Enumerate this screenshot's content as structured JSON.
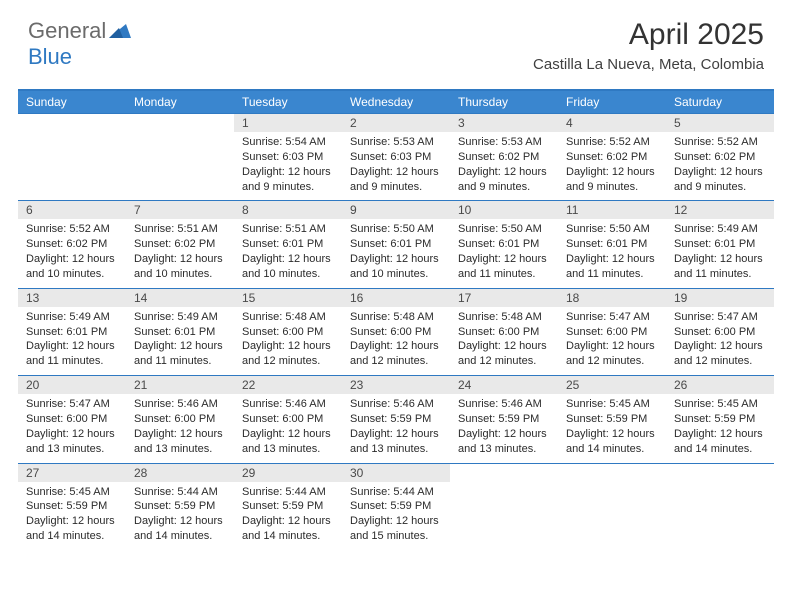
{
  "logo": {
    "general": "General",
    "blue": "Blue"
  },
  "title": "April 2025",
  "location": "Castilla La Nueva, Meta, Colombia",
  "colors": {
    "headerBar": "#3a86cf",
    "topBorder": "#2f79c2",
    "dayNumBg": "#e9e9e9",
    "textDark": "#2b2b2b",
    "logoGray": "#6b6b6b",
    "logoBlue": "#2f79c2"
  },
  "daysOfWeek": [
    "Sunday",
    "Monday",
    "Tuesday",
    "Wednesday",
    "Thursday",
    "Friday",
    "Saturday"
  ],
  "startDayOffset": 2,
  "numDays": 30,
  "days": [
    {
      "n": 1,
      "sr": "5:54 AM",
      "ss": "6:03 PM",
      "dl": "12 hours and 9 minutes."
    },
    {
      "n": 2,
      "sr": "5:53 AM",
      "ss": "6:03 PM",
      "dl": "12 hours and 9 minutes."
    },
    {
      "n": 3,
      "sr": "5:53 AM",
      "ss": "6:02 PM",
      "dl": "12 hours and 9 minutes."
    },
    {
      "n": 4,
      "sr": "5:52 AM",
      "ss": "6:02 PM",
      "dl": "12 hours and 9 minutes."
    },
    {
      "n": 5,
      "sr": "5:52 AM",
      "ss": "6:02 PM",
      "dl": "12 hours and 9 minutes."
    },
    {
      "n": 6,
      "sr": "5:52 AM",
      "ss": "6:02 PM",
      "dl": "12 hours and 10 minutes."
    },
    {
      "n": 7,
      "sr": "5:51 AM",
      "ss": "6:02 PM",
      "dl": "12 hours and 10 minutes."
    },
    {
      "n": 8,
      "sr": "5:51 AM",
      "ss": "6:01 PM",
      "dl": "12 hours and 10 minutes."
    },
    {
      "n": 9,
      "sr": "5:50 AM",
      "ss": "6:01 PM",
      "dl": "12 hours and 10 minutes."
    },
    {
      "n": 10,
      "sr": "5:50 AM",
      "ss": "6:01 PM",
      "dl": "12 hours and 11 minutes."
    },
    {
      "n": 11,
      "sr": "5:50 AM",
      "ss": "6:01 PM",
      "dl": "12 hours and 11 minutes."
    },
    {
      "n": 12,
      "sr": "5:49 AM",
      "ss": "6:01 PM",
      "dl": "12 hours and 11 minutes."
    },
    {
      "n": 13,
      "sr": "5:49 AM",
      "ss": "6:01 PM",
      "dl": "12 hours and 11 minutes."
    },
    {
      "n": 14,
      "sr": "5:49 AM",
      "ss": "6:01 PM",
      "dl": "12 hours and 11 minutes."
    },
    {
      "n": 15,
      "sr": "5:48 AM",
      "ss": "6:00 PM",
      "dl": "12 hours and 12 minutes."
    },
    {
      "n": 16,
      "sr": "5:48 AM",
      "ss": "6:00 PM",
      "dl": "12 hours and 12 minutes."
    },
    {
      "n": 17,
      "sr": "5:48 AM",
      "ss": "6:00 PM",
      "dl": "12 hours and 12 minutes."
    },
    {
      "n": 18,
      "sr": "5:47 AM",
      "ss": "6:00 PM",
      "dl": "12 hours and 12 minutes."
    },
    {
      "n": 19,
      "sr": "5:47 AM",
      "ss": "6:00 PM",
      "dl": "12 hours and 12 minutes."
    },
    {
      "n": 20,
      "sr": "5:47 AM",
      "ss": "6:00 PM",
      "dl": "12 hours and 13 minutes."
    },
    {
      "n": 21,
      "sr": "5:46 AM",
      "ss": "6:00 PM",
      "dl": "12 hours and 13 minutes."
    },
    {
      "n": 22,
      "sr": "5:46 AM",
      "ss": "6:00 PM",
      "dl": "12 hours and 13 minutes."
    },
    {
      "n": 23,
      "sr": "5:46 AM",
      "ss": "5:59 PM",
      "dl": "12 hours and 13 minutes."
    },
    {
      "n": 24,
      "sr": "5:46 AM",
      "ss": "5:59 PM",
      "dl": "12 hours and 13 minutes."
    },
    {
      "n": 25,
      "sr": "5:45 AM",
      "ss": "5:59 PM",
      "dl": "12 hours and 14 minutes."
    },
    {
      "n": 26,
      "sr": "5:45 AM",
      "ss": "5:59 PM",
      "dl": "12 hours and 14 minutes."
    },
    {
      "n": 27,
      "sr": "5:45 AM",
      "ss": "5:59 PM",
      "dl": "12 hours and 14 minutes."
    },
    {
      "n": 28,
      "sr": "5:44 AM",
      "ss": "5:59 PM",
      "dl": "12 hours and 14 minutes."
    },
    {
      "n": 29,
      "sr": "5:44 AM",
      "ss": "5:59 PM",
      "dl": "12 hours and 14 minutes."
    },
    {
      "n": 30,
      "sr": "5:44 AM",
      "ss": "5:59 PM",
      "dl": "12 hours and 15 minutes."
    }
  ],
  "labels": {
    "sunrise": "Sunrise:",
    "sunset": "Sunset:",
    "daylight": "Daylight:"
  }
}
